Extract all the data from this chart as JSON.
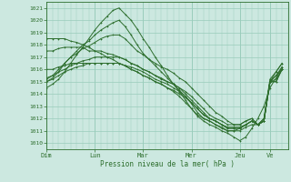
{
  "title": "",
  "xlabel": "Pression niveau de la mer( hPa )",
  "ylabel": "",
  "bg_color": "#cce8e0",
  "grid_color": "#99ccbb",
  "line_color": "#2d6e2d",
  "ylim": [
    1009.5,
    1021.5
  ],
  "xlim": [
    0,
    40
  ],
  "day_positions": [
    0,
    8,
    16,
    24,
    32,
    37,
    40
  ],
  "day_labels": [
    "Dim",
    "Lun",
    "Mar",
    "Mer",
    "Jeu",
    "Ve"
  ],
  "series": [
    [
      1014.5,
      1014.8,
      1015.2,
      1015.8,
      1016.5,
      1017.2,
      1017.8,
      1018.5,
      1019.2,
      1019.8,
      1020.3,
      1020.8,
      1021.0,
      1020.5,
      1020.0,
      1019.3,
      1018.5,
      1017.8,
      1017.0,
      1016.3,
      1015.5,
      1014.8,
      1014.2,
      1013.5,
      1012.8,
      1012.2,
      1011.8,
      1011.5,
      1011.3,
      1011.0,
      1010.8,
      1010.5,
      1010.2,
      1010.5,
      1011.2,
      1012.0,
      1013.0,
      1014.5,
      1015.3,
      1016.2
    ],
    [
      1015.0,
      1015.3,
      1015.8,
      1016.5,
      1017.0,
      1017.5,
      1018.0,
      1018.3,
      1018.8,
      1019.2,
      1019.5,
      1019.8,
      1020.0,
      1019.5,
      1018.8,
      1018.0,
      1017.3,
      1016.8,
      1016.3,
      1015.8,
      1015.3,
      1014.8,
      1014.3,
      1013.8,
      1013.2,
      1012.5,
      1012.0,
      1011.8,
      1011.5,
      1011.3,
      1011.0,
      1011.0,
      1011.2,
      1011.5,
      1011.8,
      1011.5,
      1012.0,
      1015.0,
      1015.5,
      1016.0
    ],
    [
      1015.2,
      1015.5,
      1016.0,
      1016.5,
      1017.0,
      1017.3,
      1017.7,
      1017.9,
      1018.2,
      1018.5,
      1018.7,
      1018.8,
      1018.8,
      1018.5,
      1018.0,
      1017.5,
      1017.2,
      1016.8,
      1016.5,
      1016.2,
      1016.0,
      1015.7,
      1015.3,
      1015.0,
      1014.5,
      1014.0,
      1013.5,
      1013.0,
      1012.5,
      1012.2,
      1011.8,
      1011.5,
      1011.5,
      1011.8,
      1012.0,
      1011.5,
      1012.0,
      1015.2,
      1015.8,
      1016.5
    ],
    [
      1015.3,
      1015.5,
      1015.8,
      1016.0,
      1016.3,
      1016.5,
      1016.7,
      1016.8,
      1017.0,
      1017.0,
      1017.0,
      1017.0,
      1017.0,
      1016.8,
      1016.5,
      1016.3,
      1016.0,
      1015.8,
      1015.5,
      1015.3,
      1015.0,
      1014.8,
      1014.5,
      1014.2,
      1013.8,
      1013.3,
      1012.8,
      1012.3,
      1012.0,
      1011.8,
      1011.5,
      1011.5,
      1011.5,
      1011.8,
      1012.0,
      1011.5,
      1011.8,
      1015.0,
      1015.8,
      1016.5
    ],
    [
      1015.0,
      1015.2,
      1015.5,
      1015.8,
      1016.0,
      1016.2,
      1016.3,
      1016.5,
      1016.5,
      1016.5,
      1016.5,
      1016.5,
      1016.5,
      1016.3,
      1016.0,
      1015.8,
      1015.5,
      1015.3,
      1015.0,
      1014.8,
      1014.5,
      1014.3,
      1014.0,
      1013.7,
      1013.3,
      1012.8,
      1012.3,
      1012.0,
      1011.8,
      1011.5,
      1011.3,
      1011.3,
      1011.3,
      1011.5,
      1011.8,
      1011.5,
      1011.8,
      1015.0,
      1015.5,
      1016.2
    ],
    [
      1016.0,
      1016.0,
      1016.2,
      1016.3,
      1016.5,
      1016.5,
      1016.5,
      1016.5,
      1016.5,
      1016.5,
      1016.5,
      1016.5,
      1016.5,
      1016.3,
      1016.2,
      1016.0,
      1015.8,
      1015.5,
      1015.2,
      1015.0,
      1014.8,
      1014.5,
      1014.2,
      1013.8,
      1013.3,
      1012.8,
      1012.3,
      1012.0,
      1011.8,
      1011.5,
      1011.2,
      1011.2,
      1011.2,
      1011.5,
      1011.8,
      1011.5,
      1011.8,
      1015.0,
      1015.2,
      1016.0
    ],
    [
      1017.5,
      1017.5,
      1017.7,
      1017.8,
      1017.8,
      1017.8,
      1017.8,
      1017.5,
      1017.5,
      1017.5,
      1017.3,
      1017.2,
      1017.0,
      1016.8,
      1016.5,
      1016.3,
      1016.0,
      1015.8,
      1015.5,
      1015.2,
      1015.0,
      1014.8,
      1014.5,
      1014.0,
      1013.5,
      1013.0,
      1012.5,
      1012.0,
      1011.8,
      1011.5,
      1011.2,
      1011.2,
      1011.2,
      1011.5,
      1011.8,
      1011.5,
      1011.8,
      1015.0,
      1015.0,
      1016.0
    ],
    [
      1018.5,
      1018.5,
      1018.5,
      1018.5,
      1018.3,
      1018.2,
      1018.0,
      1017.8,
      1017.5,
      1017.3,
      1017.0,
      1016.8,
      1016.5,
      1016.3,
      1016.0,
      1015.8,
      1015.5,
      1015.3,
      1015.0,
      1014.8,
      1014.5,
      1014.2,
      1013.8,
      1013.3,
      1012.8,
      1012.3,
      1012.0,
      1011.8,
      1011.5,
      1011.2,
      1011.0,
      1011.0,
      1011.0,
      1011.3,
      1011.5,
      1011.5,
      1011.8,
      1015.0,
      1015.0,
      1016.0
    ]
  ]
}
